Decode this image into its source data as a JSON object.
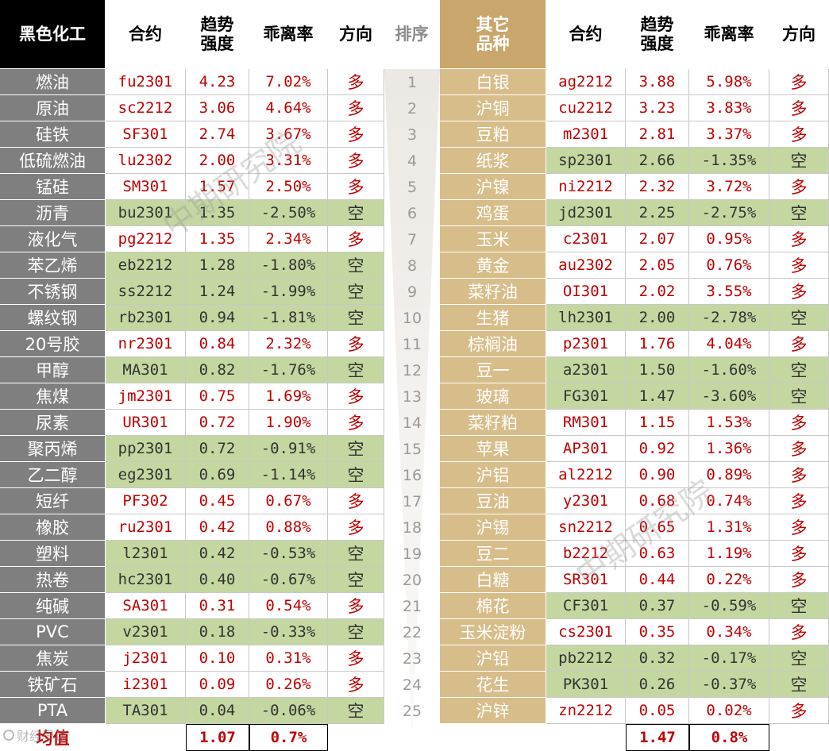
{
  "headers": {
    "left_category": "黑色化工",
    "contract": "合约",
    "strength": "趋势\n强度",
    "deviation": "乖离率",
    "direction": "方向",
    "rank": "排序",
    "right_category": "其它\n品种"
  },
  "watermark": "中期研究院",
  "corner_mark": "财经早读",
  "colors": {
    "long_text": "#c00000",
    "short_bg": "#c4d7a0",
    "left_name_bg": "#7f7f7f",
    "right_name_bg": "#d7bd8a",
    "gold_header": "#c9a66b"
  },
  "left": [
    {
      "name": "燃油",
      "contract": "fu2301",
      "strength": "4.23",
      "deviation": "7.02%",
      "direction": "多"
    },
    {
      "name": "原油",
      "contract": "sc2212",
      "strength": "3.06",
      "deviation": "4.64%",
      "direction": "多"
    },
    {
      "name": "硅铁",
      "contract": "SF301",
      "strength": "2.74",
      "deviation": "3.67%",
      "direction": "多"
    },
    {
      "name": "低硫燃油",
      "contract": "lu2302",
      "strength": "2.00",
      "deviation": "3.31%",
      "direction": "多"
    },
    {
      "name": "锰硅",
      "contract": "SM301",
      "strength": "1.57",
      "deviation": "2.50%",
      "direction": "多"
    },
    {
      "name": "沥青",
      "contract": "bu2301",
      "strength": "1.35",
      "deviation": "-2.50%",
      "direction": "空"
    },
    {
      "name": "液化气",
      "contract": "pg2212",
      "strength": "1.35",
      "deviation": "2.34%",
      "direction": "多"
    },
    {
      "name": "苯乙烯",
      "contract": "eb2212",
      "strength": "1.28",
      "deviation": "-1.80%",
      "direction": "空"
    },
    {
      "name": "不锈钢",
      "contract": "ss2212",
      "strength": "1.24",
      "deviation": "-1.99%",
      "direction": "空"
    },
    {
      "name": "螺纹钢",
      "contract": "rb2301",
      "strength": "0.94",
      "deviation": "-1.81%",
      "direction": "空"
    },
    {
      "name": "20号胶",
      "contract": "nr2301",
      "strength": "0.84",
      "deviation": "2.32%",
      "direction": "多"
    },
    {
      "name": "甲醇",
      "contract": "MA301",
      "strength": "0.82",
      "deviation": "-1.76%",
      "direction": "空"
    },
    {
      "name": "焦煤",
      "contract": "jm2301",
      "strength": "0.75",
      "deviation": "1.69%",
      "direction": "多"
    },
    {
      "name": "尿素",
      "contract": "UR301",
      "strength": "0.72",
      "deviation": "1.90%",
      "direction": "多"
    },
    {
      "name": "聚丙烯",
      "contract": "pp2301",
      "strength": "0.72",
      "deviation": "-0.91%",
      "direction": "空"
    },
    {
      "name": "乙二醇",
      "contract": "eg2301",
      "strength": "0.69",
      "deviation": "-1.14%",
      "direction": "空"
    },
    {
      "name": "短纤",
      "contract": "PF302",
      "strength": "0.45",
      "deviation": "0.67%",
      "direction": "多"
    },
    {
      "name": "橡胶",
      "contract": "ru2301",
      "strength": "0.42",
      "deviation": "0.88%",
      "direction": "多"
    },
    {
      "name": "塑料",
      "contract": "l2301",
      "strength": "0.42",
      "deviation": "-0.53%",
      "direction": "空"
    },
    {
      "name": "热卷",
      "contract": "hc2301",
      "strength": "0.40",
      "deviation": "-0.67%",
      "direction": "空"
    },
    {
      "name": "纯碱",
      "contract": "SA301",
      "strength": "0.31",
      "deviation": "0.54%",
      "direction": "多"
    },
    {
      "name": "PVC",
      "contract": "v2301",
      "strength": "0.18",
      "deviation": "-0.33%",
      "direction": "空"
    },
    {
      "name": "焦炭",
      "contract": "j2301",
      "strength": "0.10",
      "deviation": "0.31%",
      "direction": "多"
    },
    {
      "name": "铁矿石",
      "contract": "i2301",
      "strength": "0.09",
      "deviation": "0.26%",
      "direction": "多"
    },
    {
      "name": "PTA",
      "contract": "TA301",
      "strength": "0.04",
      "deviation": "-0.06%",
      "direction": "空"
    }
  ],
  "right": [
    {
      "name": "白银",
      "contract": "ag2212",
      "strength": "3.88",
      "deviation": "5.98%",
      "direction": "多"
    },
    {
      "name": "沪铜",
      "contract": "cu2212",
      "strength": "3.23",
      "deviation": "3.83%",
      "direction": "多"
    },
    {
      "name": "豆粕",
      "contract": "m2301",
      "strength": "2.81",
      "deviation": "3.37%",
      "direction": "多"
    },
    {
      "name": "纸浆",
      "contract": "sp2301",
      "strength": "2.66",
      "deviation": "-1.35%",
      "direction": "空"
    },
    {
      "name": "沪镍",
      "contract": "ni2212",
      "strength": "2.32",
      "deviation": "3.72%",
      "direction": "多"
    },
    {
      "name": "鸡蛋",
      "contract": "jd2301",
      "strength": "2.25",
      "deviation": "-2.75%",
      "direction": "空"
    },
    {
      "name": "玉米",
      "contract": "c2301",
      "strength": "2.07",
      "deviation": "0.95%",
      "direction": "多"
    },
    {
      "name": "黄金",
      "contract": "au2302",
      "strength": "2.05",
      "deviation": "0.76%",
      "direction": "多"
    },
    {
      "name": "菜籽油",
      "contract": "OI301",
      "strength": "2.02",
      "deviation": "3.55%",
      "direction": "多"
    },
    {
      "name": "生猪",
      "contract": "lh2301",
      "strength": "2.00",
      "deviation": "-2.78%",
      "direction": "空"
    },
    {
      "name": "棕榈油",
      "contract": "p2301",
      "strength": "1.76",
      "deviation": "4.04%",
      "direction": "多"
    },
    {
      "name": "豆一",
      "contract": "a2301",
      "strength": "1.50",
      "deviation": "-1.60%",
      "direction": "空"
    },
    {
      "name": "玻璃",
      "contract": "FG301",
      "strength": "1.47",
      "deviation": "-3.60%",
      "direction": "空"
    },
    {
      "name": "菜籽粕",
      "contract": "RM301",
      "strength": "1.15",
      "deviation": "1.53%",
      "direction": "多"
    },
    {
      "name": "苹果",
      "contract": "AP301",
      "strength": "0.92",
      "deviation": "1.36%",
      "direction": "多"
    },
    {
      "name": "沪铝",
      "contract": "al2212",
      "strength": "0.90",
      "deviation": "0.89%",
      "direction": "多"
    },
    {
      "name": "豆油",
      "contract": "y2301",
      "strength": "0.68",
      "deviation": "0.74%",
      "direction": "多"
    },
    {
      "name": "沪锡",
      "contract": "sn2212",
      "strength": "0.65",
      "deviation": "1.31%",
      "direction": "多"
    },
    {
      "name": "豆二",
      "contract": "b2212",
      "strength": "0.63",
      "deviation": "1.19%",
      "direction": "多"
    },
    {
      "name": "白糖",
      "contract": "SR301",
      "strength": "0.44",
      "deviation": "0.22%",
      "direction": "多"
    },
    {
      "name": "棉花",
      "contract": "CF301",
      "strength": "0.37",
      "deviation": "-0.59%",
      "direction": "空"
    },
    {
      "name": "玉米淀粉",
      "contract": "cs2301",
      "strength": "0.35",
      "deviation": "0.34%",
      "direction": "多"
    },
    {
      "name": "沪铅",
      "contract": "pb2212",
      "strength": "0.32",
      "deviation": "-0.17%",
      "direction": "空"
    },
    {
      "name": "花生",
      "contract": "PK301",
      "strength": "0.26",
      "deviation": "-0.37%",
      "direction": "空"
    },
    {
      "name": "沪锌",
      "contract": "zn2212",
      "strength": "0.05",
      "deviation": "0.02%",
      "direction": "多"
    }
  ],
  "ranks": [
    "1",
    "2",
    "3",
    "4",
    "5",
    "6",
    "7",
    "8",
    "9",
    "10",
    "11",
    "12",
    "13",
    "14",
    "15",
    "16",
    "17",
    "18",
    "19",
    "20",
    "21",
    "22",
    "23",
    "24",
    "25"
  ],
  "average": {
    "label": "均值",
    "left_strength": "1.07",
    "left_deviation": "0.7%",
    "right_strength": "1.47",
    "right_deviation": "0.8%"
  }
}
